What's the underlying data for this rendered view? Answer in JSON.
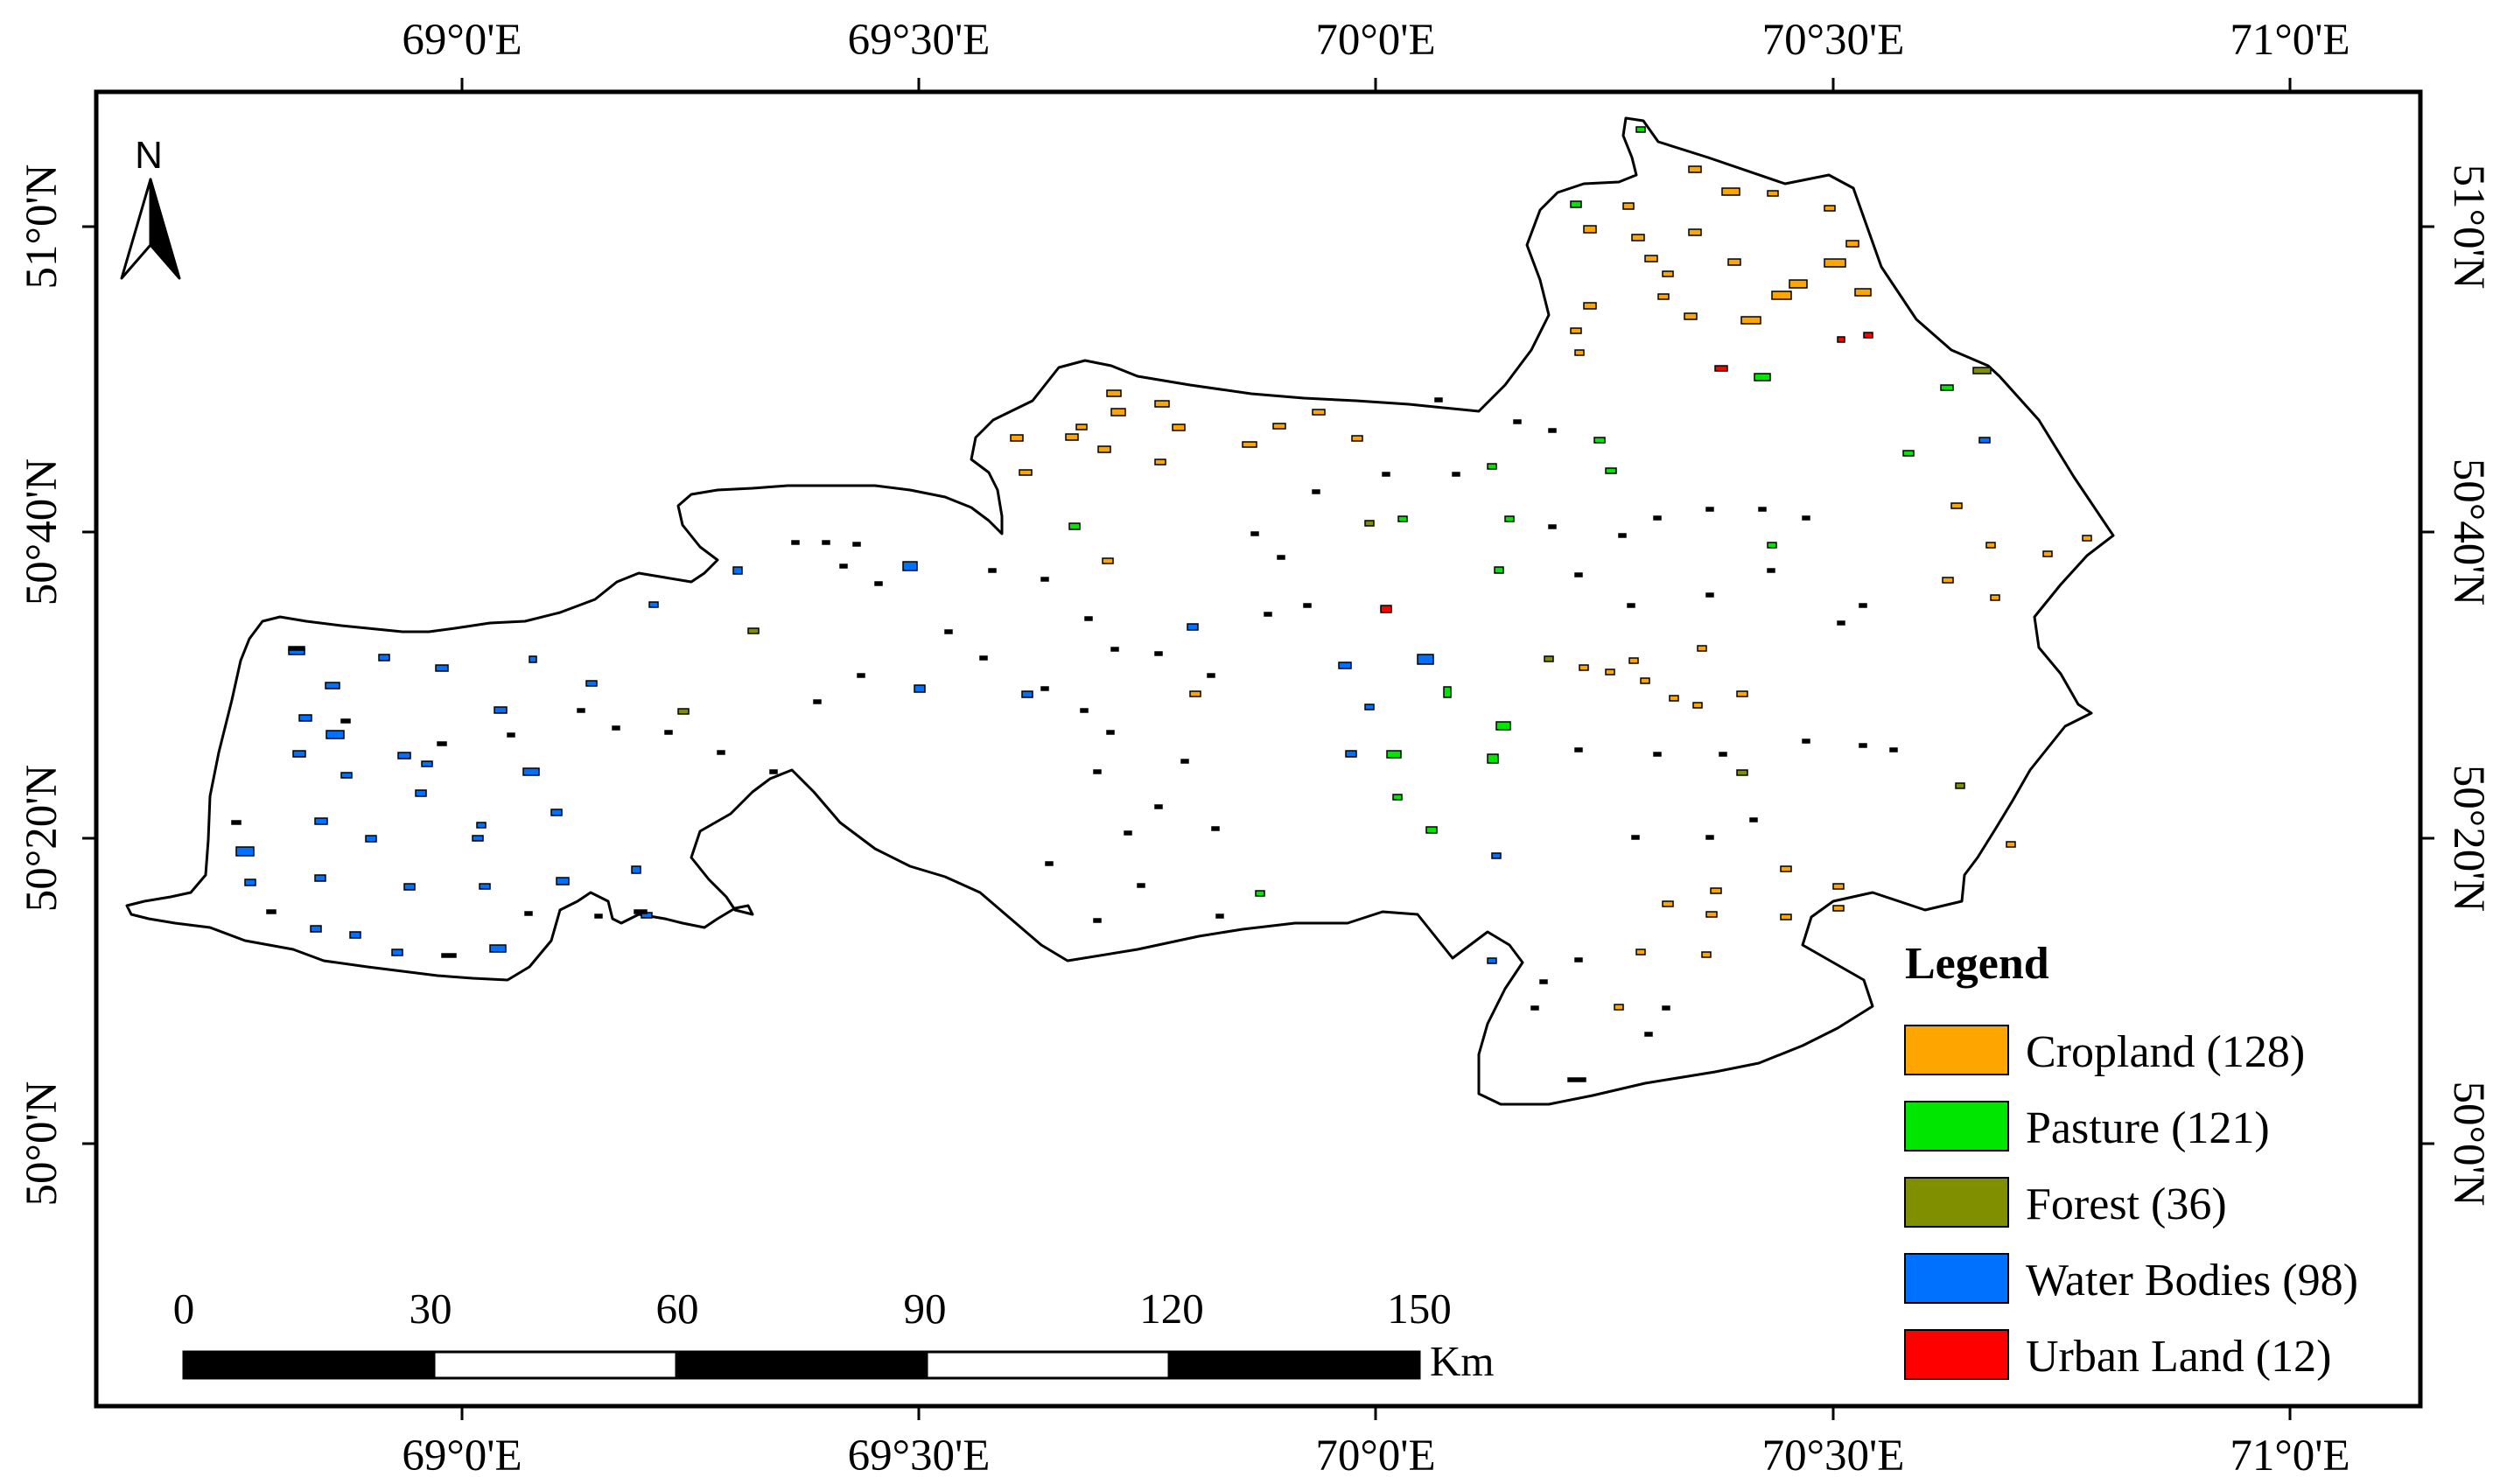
{
  "map": {
    "north_arrow_label": "N",
    "top_longitude_labels": [
      "69°0'E",
      "69°30'E",
      "70°0'E",
      "70°30'E",
      "71°0'E"
    ],
    "bottom_longitude_labels": [
      "69°0'E",
      "69°30'E",
      "70°0'E",
      "70°30'E",
      "71°0'E"
    ],
    "left_latitude_labels": [
      "51°0'N",
      "50°40'N",
      "50°20'N",
      "50°0'N"
    ],
    "right_latitude_labels": [
      "51°0'N",
      "50°40'N",
      "50°20'N",
      "50°0'N"
    ]
  },
  "legend": {
    "title": "Legend",
    "items": [
      {
        "label": "Cropland (128)",
        "color": "#FFA500"
      },
      {
        "label": "Pasture (121)",
        "color": "#00E600"
      },
      {
        "label": "Forest (36)",
        "color": "#7F8F00"
      },
      {
        "label": "Water Bodies (98)",
        "color": "#0070FF"
      },
      {
        "label": "Urban Land (12)",
        "color": "#FF0000"
      }
    ]
  },
  "scale_bar": {
    "labels": [
      "0",
      "30",
      "60",
      "90",
      "120",
      "150"
    ],
    "unit": "Km"
  }
}
